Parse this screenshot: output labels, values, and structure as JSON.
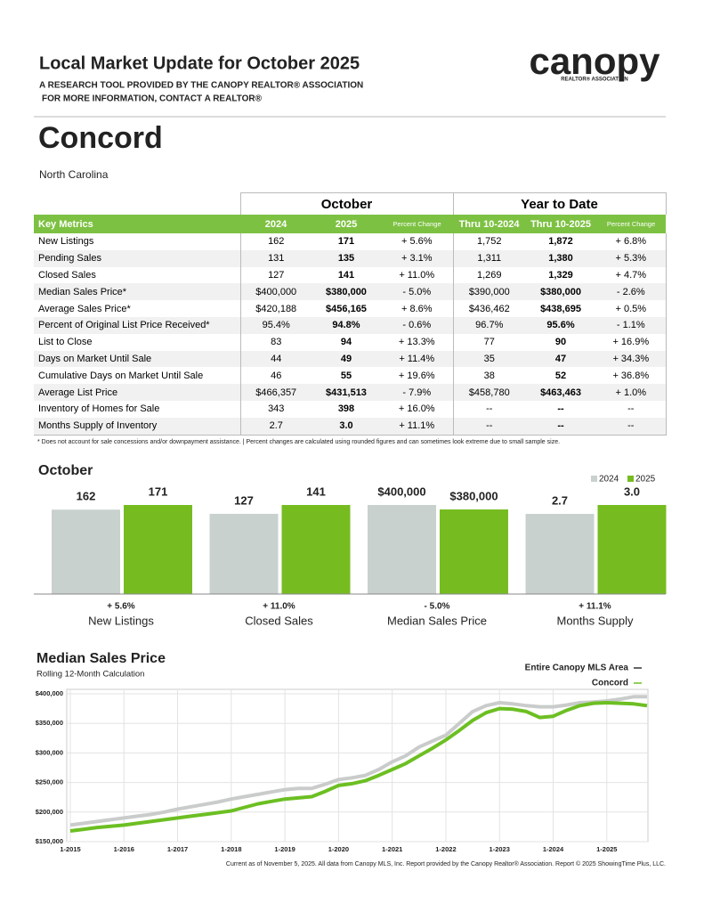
{
  "header": {
    "title": "Local Market Update for October 2025",
    "subtitle_lines": [
      "A RESEARCH TOOL PROVIDED BY THE CANOPY REALTOR® ASSOCIATION",
      "FOR MORE INFORMATION, CONTACT A REALTOR®"
    ],
    "logo": "canopy",
    "logo_tagline": "REALTOR® ASSOCIATION"
  },
  "location": {
    "city": "Concord",
    "state": "North Carolina"
  },
  "table": {
    "group_headers": [
      "October",
      "Year to Date"
    ],
    "columns": [
      "Key Metrics",
      "2024",
      "2025",
      "Percent Change",
      "Thru 10-2024",
      "Thru 10-2025",
      "Percent Change"
    ],
    "rows": [
      [
        "New Listings",
        "162",
        "171",
        "+ 5.6%",
        "1,752",
        "1,872",
        "+ 6.8%"
      ],
      [
        "Pending Sales",
        "131",
        "135",
        "+ 3.1%",
        "1,311",
        "1,380",
        "+ 5.3%"
      ],
      [
        "Closed Sales",
        "127",
        "141",
        "+ 11.0%",
        "1,269",
        "1,329",
        "+ 4.7%"
      ],
      [
        "Median Sales Price*",
        "$400,000",
        "$380,000",
        "- 5.0%",
        "$390,000",
        "$380,000",
        "- 2.6%"
      ],
      [
        "Average Sales Price*",
        "$420,188",
        "$456,165",
        "+ 8.6%",
        "$436,462",
        "$438,695",
        "+ 0.5%"
      ],
      [
        "Percent of Original List Price Received*",
        "95.4%",
        "94.8%",
        "- 0.6%",
        "96.7%",
        "95.6%",
        "- 1.1%"
      ],
      [
        "List to Close",
        "83",
        "94",
        "+ 13.3%",
        "77",
        "90",
        "+ 16.9%"
      ],
      [
        "Days on Market Until Sale",
        "44",
        "49",
        "+ 11.4%",
        "35",
        "47",
        "+ 34.3%"
      ],
      [
        "Cumulative Days on Market Until Sale",
        "46",
        "55",
        "+ 19.6%",
        "38",
        "52",
        "+ 36.8%"
      ],
      [
        "Average List Price",
        "$466,357",
        "$431,513",
        "- 7.9%",
        "$458,780",
        "$463,463",
        "+ 1.0%"
      ],
      [
        "Inventory of Homes for Sale",
        "343",
        "398",
        "+ 16.0%",
        "--",
        "--",
        "--"
      ],
      [
        "Months Supply of Inventory",
        "2.7",
        "3.0",
        "+ 11.1%",
        "--",
        "--",
        "--"
      ]
    ]
  },
  "footnote": "* Does not account for sale concessions and/or downpayment assistance.  |  Percent changes are calculated using rounded figures and can sometimes look extreme due to small sample size.",
  "chart_data": [
    {
      "type": "bar",
      "title": "October",
      "categories": [
        "New Listings",
        "Closed Sales",
        "Median Sales Price",
        "Months Supply"
      ],
      "series": [
        {
          "name": "2024",
          "color": "#c9d1cf",
          "values": [
            162,
            127,
            400000,
            2.7
          ],
          "value_labels": [
            "162",
            "127",
            "$400,000",
            "2.7"
          ]
        },
        {
          "name": "2025",
          "color": "#76bc21",
          "values": [
            171,
            141,
            380000,
            3.0
          ],
          "value_labels": [
            "171",
            "141",
            "$380,000",
            "3.0"
          ]
        }
      ],
      "changes": [
        "+ 5.6%",
        "+ 11.0%",
        "- 5.0%",
        "+ 11.1%"
      ]
    },
    {
      "type": "line",
      "title": "Median Sales Price",
      "subtitle": "Rolling 12-Month Calculation",
      "grid": true,
      "x": [
        "2015-01",
        "2015-04",
        "2015-07",
        "2015-10",
        "2016-01",
        "2016-04",
        "2016-07",
        "2016-10",
        "2017-01",
        "2017-04",
        "2017-07",
        "2017-10",
        "2018-01",
        "2018-04",
        "2018-07",
        "2018-10",
        "2019-01",
        "2019-04",
        "2019-07",
        "2019-10",
        "2020-01",
        "2020-04",
        "2020-07",
        "2020-10",
        "2021-01",
        "2021-04",
        "2021-07",
        "2021-10",
        "2022-01",
        "2022-04",
        "2022-07",
        "2022-10",
        "2023-01",
        "2023-04",
        "2023-07",
        "2023-10",
        "2024-01",
        "2024-04",
        "2024-07",
        "2024-10",
        "2025-01",
        "2025-04",
        "2025-07",
        "2025-10"
      ],
      "series": [
        {
          "name": "Entire Canopy MLS Area",
          "color": "#c9cccb",
          "values": [
            178000,
            181000,
            184000,
            187000,
            190000,
            193000,
            196000,
            200000,
            205000,
            209000,
            213000,
            217000,
            222000,
            226000,
            230000,
            234000,
            238000,
            240000,
            240000,
            247000,
            255000,
            258000,
            262000,
            272000,
            285000,
            295000,
            310000,
            320000,
            330000,
            350000,
            370000,
            380000,
            385000,
            383000,
            380000,
            378000,
            378000,
            381000,
            385000,
            386000,
            388000,
            391000,
            395000,
            395000
          ]
        },
        {
          "name": "Concord",
          "color": "#6cbf22",
          "values": [
            168000,
            171000,
            174000,
            176000,
            178000,
            181000,
            184000,
            187000,
            190000,
            193000,
            196000,
            199000,
            202000,
            208000,
            214000,
            218000,
            222000,
            224000,
            226000,
            235000,
            245000,
            248000,
            253000,
            262000,
            272000,
            282000,
            295000,
            308000,
            322000,
            338000,
            355000,
            368000,
            375000,
            374000,
            370000,
            360000,
            362000,
            372000,
            380000,
            384000,
            385000,
            384000,
            383000,
            380000
          ]
        }
      ],
      "xlim": [
        "2015-01",
        "2025-10"
      ],
      "xticks": [
        {
          "value": "2015-01",
          "label": "1-2015"
        },
        {
          "value": "2016-01",
          "label": "1-2016"
        },
        {
          "value": "2017-01",
          "label": "1-2017"
        },
        {
          "value": "2018-01",
          "label": "1-2018"
        },
        {
          "value": "2019-01",
          "label": "1-2019"
        },
        {
          "value": "2020-01",
          "label": "1-2020"
        },
        {
          "value": "2021-01",
          "label": "1-2021"
        },
        {
          "value": "2022-01",
          "label": "1-2022"
        },
        {
          "value": "2023-01",
          "label": "1-2023"
        },
        {
          "value": "2024-01",
          "label": "1-2024"
        },
        {
          "value": "2025-01",
          "label": "1-2025"
        }
      ],
      "ylim": [
        150000,
        400000
      ],
      "yticks": [
        {
          "value": 150000,
          "label": "$150,000"
        },
        {
          "value": 200000,
          "label": "$200,000"
        },
        {
          "value": 250000,
          "label": "$250,000"
        },
        {
          "value": 300000,
          "label": "$300,000"
        },
        {
          "value": 350000,
          "label": "$350,000"
        },
        {
          "value": 400000,
          "label": "$400,000"
        }
      ]
    }
  ],
  "footer": "Current as of November 5, 2025. All data from Canopy MLS, Inc. Report provided by the Canopy Realtor® Association. Report © 2025 ShowingTime Plus, LLC."
}
